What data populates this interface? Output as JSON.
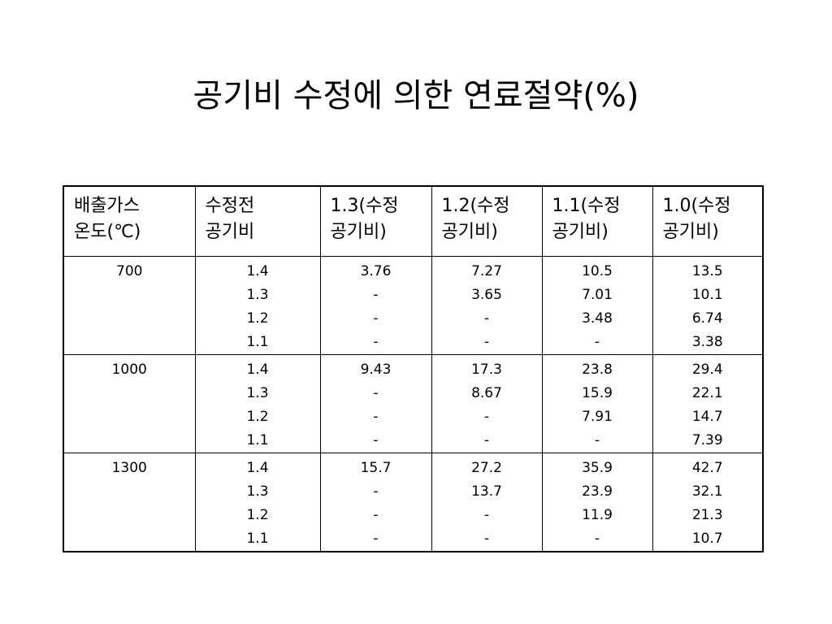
{
  "title": "공기비 수정에 의한 연료절약(%)",
  "table": {
    "header": [
      [
        "배출가스",
        "온도(℃)"
      ],
      [
        "수정전",
        "공기비"
      ],
      [
        "1.3(수정",
        "공기비)"
      ],
      [
        "1.2(수정",
        "공기비)"
      ],
      [
        "1.1(수정",
        "공기비)"
      ],
      [
        "1.0(수정",
        "공기비)"
      ]
    ],
    "rows": [
      [
        [
          "700"
        ],
        [
          "1.4",
          "1.3",
          "1.2",
          "1.1"
        ],
        [
          "3.76",
          "-",
          "-",
          "-"
        ],
        [
          "7.27",
          "3.65",
          "-",
          "-"
        ],
        [
          "10.5",
          "7.01",
          "3.48",
          "-"
        ],
        [
          "13.5",
          "10.1",
          "6.74",
          "3.38"
        ]
      ],
      [
        [
          "1000"
        ],
        [
          "1.4",
          "1.3",
          "1.2",
          "1.1"
        ],
        [
          "9.43",
          "-",
          "-",
          "-"
        ],
        [
          "17.3",
          "8.67",
          "-",
          "-"
        ],
        [
          "23.8",
          "15.9",
          "7.91",
          "-"
        ],
        [
          "29.4",
          "22.1",
          "14.7",
          "7.39"
        ]
      ],
      [
        [
          "1300"
        ],
        [
          "1.4",
          "1.3",
          "1.2",
          "1.1"
        ],
        [
          "15.7",
          "-",
          "-",
          "-"
        ],
        [
          "27.2",
          "13.7",
          "-",
          "-"
        ],
        [
          "35.9",
          "23.9",
          "11.9",
          "-"
        ],
        [
          "42.7",
          "32.1",
          "21.3",
          "10.7"
        ]
      ]
    ]
  }
}
